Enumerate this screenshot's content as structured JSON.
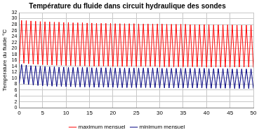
{
  "chart_data": {
    "type": "line",
    "title": "Température du fluide dans circuit hydraulique des sondes",
    "y_label": "Température du fluide °C",
    "x": [
      0,
      0.5,
      1,
      1.5,
      2,
      2.5,
      3,
      3.5,
      4,
      4.5,
      5,
      5.5,
      6,
      6.5,
      7,
      7.5,
      8,
      8.5,
      9,
      9.5,
      10,
      10.5,
      11,
      11.5,
      12,
      12.5,
      13,
      13.5,
      14,
      14.5,
      15,
      15.5,
      16,
      16.5,
      17,
      17.5,
      18,
      18.5,
      19,
      19.5,
      20,
      20.5,
      21,
      21.5,
      22,
      22.5,
      23,
      23.5,
      24,
      24.5,
      25,
      25.5,
      26,
      26.5,
      27,
      27.5,
      28,
      28.5,
      29,
      29.5,
      30,
      30.5,
      31,
      31.5,
      32,
      32.5,
      33,
      33.5,
      34,
      34.5,
      35,
      35.5,
      36,
      36.5,
      37,
      37.5,
      38,
      38.5,
      39,
      39.5,
      40,
      40.5,
      41,
      41.5,
      42,
      42.5,
      43,
      43.5,
      44,
      44.5,
      45,
      45.5,
      46,
      46.5,
      47,
      47.5,
      48,
      48.5,
      49,
      49.5,
      50
    ],
    "series": [
      {
        "name": "maximum mensuel",
        "color": "#ff0000",
        "values": [
          15.0,
          29.4,
          15.0,
          29.3,
          14.8,
          29.2,
          14.7,
          29.1,
          14.6,
          29.0,
          14.5,
          28.9,
          14.4,
          28.9,
          14.4,
          28.8,
          14.3,
          28.8,
          14.3,
          28.7,
          14.2,
          28.7,
          14.2,
          28.6,
          14.1,
          28.6,
          14.1,
          28.6,
          14.1,
          28.5,
          14.0,
          28.5,
          14.0,
          28.4,
          14.0,
          28.4,
          14.0,
          28.4,
          14.0,
          28.4,
          13.9,
          28.3,
          13.9,
          28.3,
          13.9,
          28.3,
          13.9,
          28.3,
          13.9,
          28.3,
          13.9,
          28.2,
          13.9,
          28.2,
          13.9,
          28.2,
          13.9,
          28.2,
          13.9,
          28.2,
          13.8,
          28.2,
          13.8,
          28.1,
          13.8,
          28.1,
          13.8,
          28.1,
          13.8,
          28.1,
          13.8,
          28.1,
          13.8,
          28.0,
          13.8,
          28.0,
          13.8,
          28.0,
          13.8,
          28.0,
          13.7,
          28.0,
          13.7,
          27.9,
          13.7,
          27.9,
          13.7,
          27.9,
          13.7,
          27.9,
          13.7,
          27.9,
          13.7,
          27.8,
          13.7,
          27.8,
          13.7,
          27.8,
          13.7,
          27.8,
          13.6
        ]
      },
      {
        "name": "minimum mensuel",
        "color": "#000080",
        "values": [
          8.2,
          14.6,
          8.0,
          14.4,
          7.8,
          14.2,
          7.6,
          14.1,
          7.5,
          14.0,
          7.4,
          13.9,
          7.3,
          13.8,
          7.3,
          13.8,
          7.2,
          13.7,
          7.2,
          13.7,
          7.1,
          13.6,
          7.1,
          13.6,
          7.0,
          13.6,
          7.0,
          13.6,
          7.0,
          13.6,
          6.9,
          13.5,
          6.9,
          13.5,
          6.9,
          13.5,
          6.9,
          13.5,
          6.9,
          13.5,
          6.9,
          13.4,
          6.8,
          13.4,
          6.8,
          13.4,
          6.8,
          13.4,
          6.8,
          13.4,
          6.8,
          13.4,
          6.8,
          13.4,
          6.8,
          13.4,
          6.8,
          13.4,
          6.8,
          13.4,
          6.7,
          13.3,
          6.7,
          13.3,
          6.7,
          13.3,
          6.7,
          13.3,
          6.7,
          13.3,
          6.7,
          13.3,
          6.7,
          13.3,
          6.7,
          13.3,
          6.7,
          13.3,
          6.7,
          13.3,
          6.6,
          13.2,
          6.6,
          13.2,
          6.6,
          13.2,
          6.6,
          13.2,
          6.6,
          13.2,
          6.6,
          13.1,
          6.5,
          13.1,
          6.5,
          13.1,
          6.5,
          13.1,
          6.5,
          13.1,
          6.5
        ]
      }
    ],
    "xlim": [
      0,
      50
    ],
    "xticks": [
      0,
      5,
      10,
      15,
      20,
      25,
      30,
      35,
      40,
      45,
      50
    ],
    "ylim": [
      0,
      32
    ],
    "yticks": [
      0,
      2,
      4,
      6,
      8,
      10,
      12,
      14,
      16,
      18,
      20,
      22,
      24,
      26,
      28,
      30,
      32
    ],
    "grid": true,
    "legend": "bottom"
  }
}
